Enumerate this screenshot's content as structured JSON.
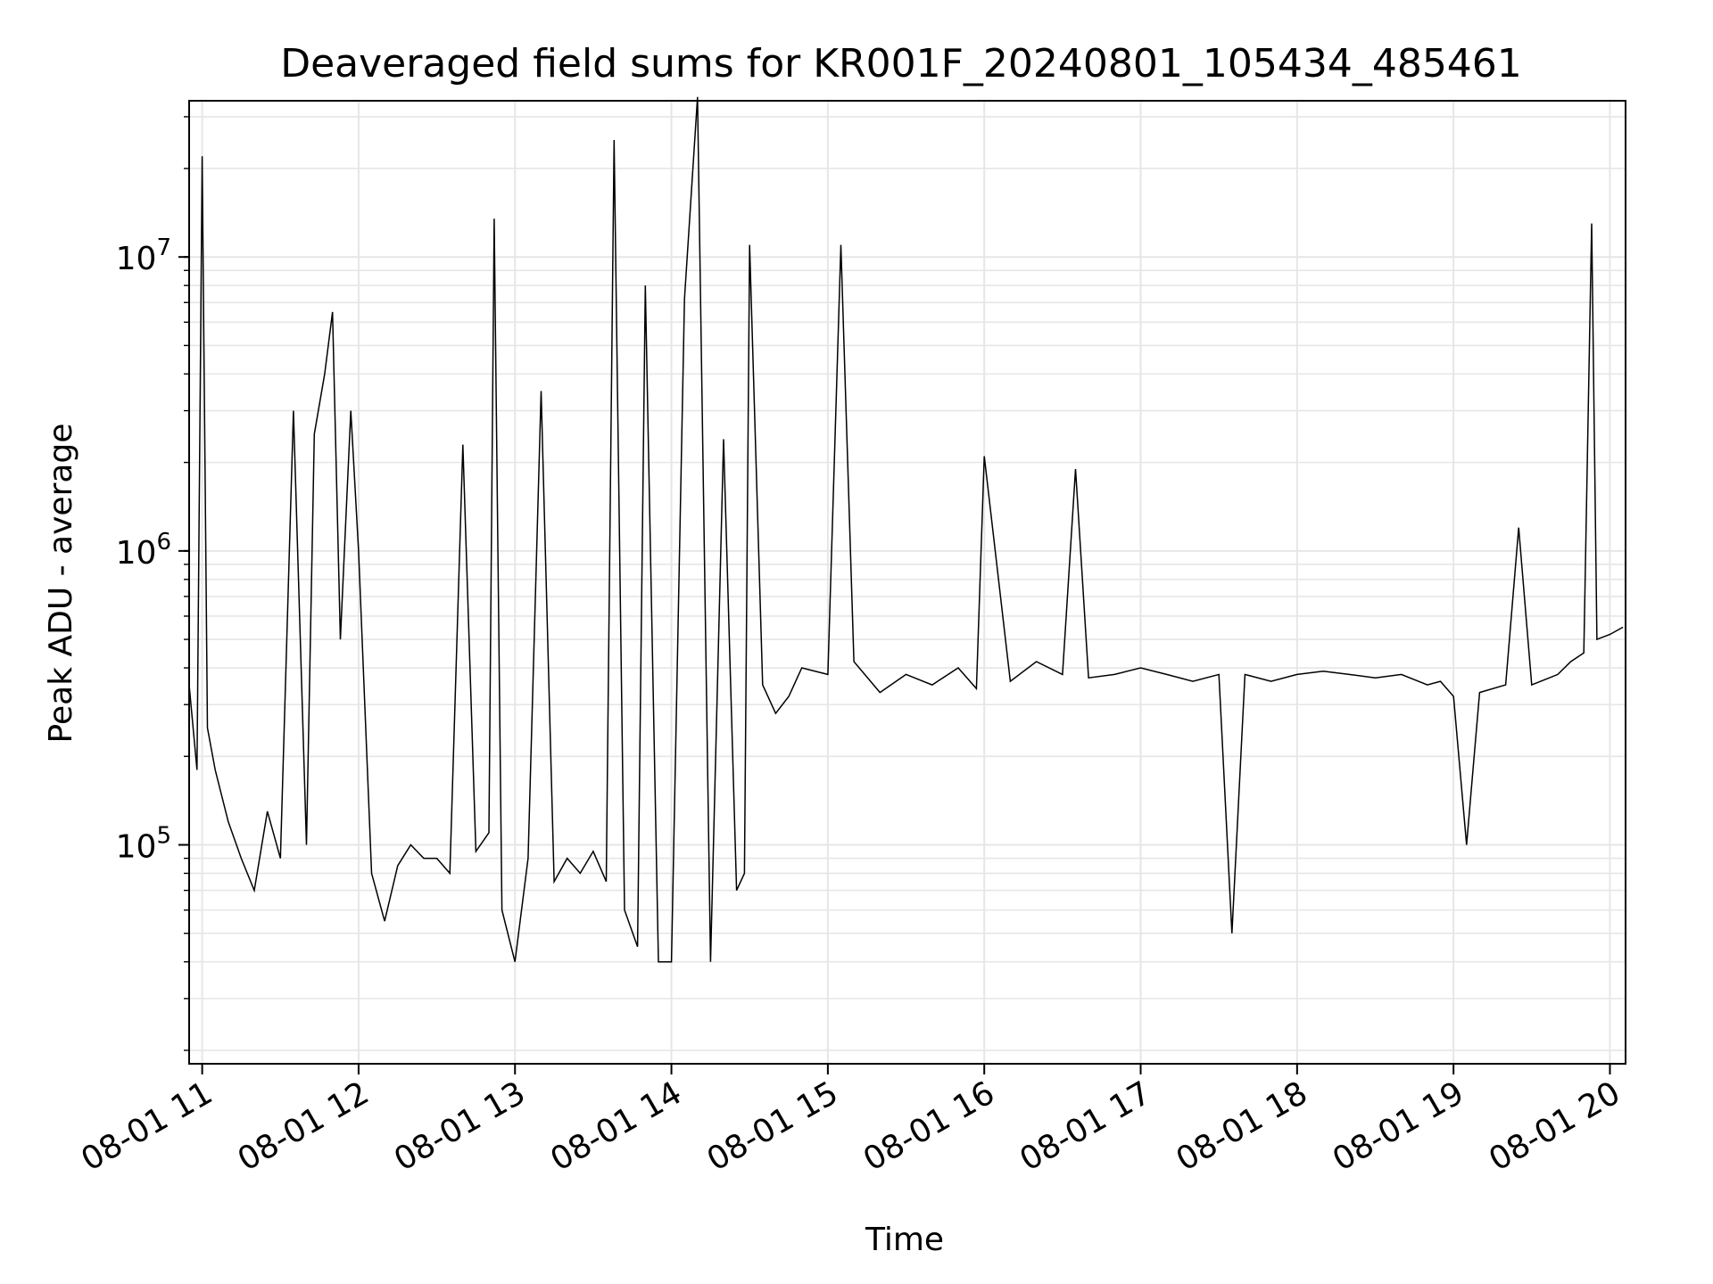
{
  "chart_data": {
    "type": "line",
    "title": "Deaveraged field sums for KR001F_20240801_105434_485461",
    "xlabel": "Time",
    "ylabel": "Peak ADU - average",
    "x_axis": {
      "kind": "time",
      "range": [
        "2024-08-01T10:55:00",
        "2024-08-01T20:06:00"
      ],
      "ticks": [
        "2024-08-01T11:00:00",
        "2024-08-01T12:00:00",
        "2024-08-01T13:00:00",
        "2024-08-01T14:00:00",
        "2024-08-01T15:00:00",
        "2024-08-01T16:00:00",
        "2024-08-01T17:00:00",
        "2024-08-01T18:00:00",
        "2024-08-01T19:00:00",
        "2024-08-01T20:00:00"
      ],
      "tick_labels": [
        "08-01 11",
        "08-01 12",
        "08-01 13",
        "08-01 14",
        "08-01 15",
        "08-01 16",
        "08-01 17",
        "08-01 18",
        "08-01 19",
        "08-01 20"
      ]
    },
    "y_axis": {
      "scale": "log",
      "range": [
        18000,
        34000000
      ],
      "ticks": [
        100000,
        1000000,
        10000000
      ],
      "tick_labels": [
        {
          "base": "10",
          "exp": "5"
        },
        {
          "base": "10",
          "exp": "6"
        },
        {
          "base": "10",
          "exp": "7"
        }
      ]
    },
    "grid": true,
    "line_color": "#000000",
    "grid_color": "#e6e6e6",
    "series": [
      {
        "x": [
          "2024-08-01T10:55:00",
          "2024-08-01T10:58:00",
          "2024-08-01T11:00:00",
          "2024-08-01T11:02:00",
          "2024-08-01T11:05:00",
          "2024-08-01T11:10:00",
          "2024-08-01T11:15:00",
          "2024-08-01T11:20:00",
          "2024-08-01T11:25:00",
          "2024-08-01T11:30:00",
          "2024-08-01T11:35:00",
          "2024-08-01T11:40:00",
          "2024-08-01T11:43:00",
          "2024-08-01T11:47:00",
          "2024-08-01T11:50:00",
          "2024-08-01T11:53:00",
          "2024-08-01T11:57:00",
          "2024-08-01T12:00:00",
          "2024-08-01T12:05:00",
          "2024-08-01T12:10:00",
          "2024-08-01T12:15:00",
          "2024-08-01T12:20:00",
          "2024-08-01T12:25:00",
          "2024-08-01T12:30:00",
          "2024-08-01T12:35:00",
          "2024-08-01T12:40:00",
          "2024-08-01T12:45:00",
          "2024-08-01T12:50:00",
          "2024-08-01T12:52:00",
          "2024-08-01T12:55:00",
          "2024-08-01T13:00:00",
          "2024-08-01T13:05:00",
          "2024-08-01T13:10:00",
          "2024-08-01T13:15:00",
          "2024-08-01T13:20:00",
          "2024-08-01T13:25:00",
          "2024-08-01T13:30:00",
          "2024-08-01T13:35:00",
          "2024-08-01T13:38:00",
          "2024-08-01T13:42:00",
          "2024-08-01T13:47:00",
          "2024-08-01T13:50:00",
          "2024-08-01T13:55:00",
          "2024-08-01T14:00:00",
          "2024-08-01T14:05:00",
          "2024-08-01T14:10:00",
          "2024-08-01T14:15:00",
          "2024-08-01T14:20:00",
          "2024-08-01T14:25:00",
          "2024-08-01T14:28:00",
          "2024-08-01T14:30:00",
          "2024-08-01T14:35:00",
          "2024-08-01T14:40:00",
          "2024-08-01T14:45:00",
          "2024-08-01T14:50:00",
          "2024-08-01T15:00:00",
          "2024-08-01T15:05:00",
          "2024-08-01T15:10:00",
          "2024-08-01T15:20:00",
          "2024-08-01T15:30:00",
          "2024-08-01T15:40:00",
          "2024-08-01T15:50:00",
          "2024-08-01T15:57:00",
          "2024-08-01T16:00:00",
          "2024-08-01T16:10:00",
          "2024-08-01T16:20:00",
          "2024-08-01T16:30:00",
          "2024-08-01T16:35:00",
          "2024-08-01T16:40:00",
          "2024-08-01T16:50:00",
          "2024-08-01T17:00:00",
          "2024-08-01T17:10:00",
          "2024-08-01T17:20:00",
          "2024-08-01T17:30:00",
          "2024-08-01T17:35:00",
          "2024-08-01T17:40:00",
          "2024-08-01T17:50:00",
          "2024-08-01T18:00:00",
          "2024-08-01T18:10:00",
          "2024-08-01T18:20:00",
          "2024-08-01T18:30:00",
          "2024-08-01T18:40:00",
          "2024-08-01T18:50:00",
          "2024-08-01T18:55:00",
          "2024-08-01T19:00:00",
          "2024-08-01T19:05:00",
          "2024-08-01T19:10:00",
          "2024-08-01T19:20:00",
          "2024-08-01T19:25:00",
          "2024-08-01T19:30:00",
          "2024-08-01T19:40:00",
          "2024-08-01T19:45:00",
          "2024-08-01T19:50:00",
          "2024-08-01T19:53:00",
          "2024-08-01T19:55:00",
          "2024-08-01T20:00:00",
          "2024-08-01T20:05:00"
        ],
        "y": [
          350000,
          180000,
          22000000,
          250000,
          180000,
          120000,
          90000,
          70000,
          130000,
          90000,
          3000000,
          100000,
          2500000,
          4000000,
          6500000,
          500000,
          3000000,
          1000000,
          80000,
          55000,
          85000,
          100000,
          90000,
          90000,
          80000,
          2300000,
          95000,
          110000,
          13500000,
          60000,
          40000,
          90000,
          3500000,
          75000,
          90000,
          80000,
          95000,
          75000,
          25000000,
          60000,
          45000,
          8000000,
          40000,
          40000,
          7200000,
          35000000,
          40000,
          2400000,
          70000,
          80000,
          11000000,
          350000,
          280000,
          320000,
          400000,
          380000,
          11000000,
          420000,
          330000,
          380000,
          350000,
          400000,
          340000,
          2100000,
          360000,
          420000,
          380000,
          1900000,
          370000,
          380000,
          400000,
          380000,
          360000,
          380000,
          50000,
          380000,
          360000,
          380000,
          390000,
          380000,
          370000,
          380000,
          350000,
          360000,
          320000,
          100000,
          330000,
          350000,
          1200000,
          350000,
          380000,
          420000,
          450000,
          13000000,
          500000,
          520000,
          550000
        ]
      }
    ]
  }
}
